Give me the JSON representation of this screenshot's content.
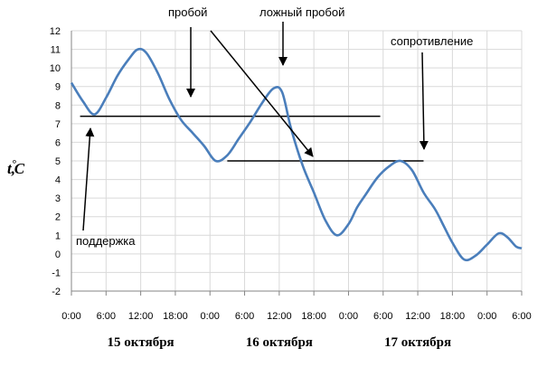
{
  "chart_data": {
    "type": "line",
    "ylabel": "t,°C",
    "ylim": [
      -2,
      12
    ],
    "ytick_step": 1,
    "xlim_hours": [
      0,
      78
    ],
    "x_tick_labels": [
      "0:00",
      "6:00",
      "12:00",
      "18:00",
      "0:00",
      "6:00",
      "12:00",
      "18:00",
      "0:00",
      "6:00",
      "12:00",
      "18:00",
      "0:00",
      "6:00"
    ],
    "day_labels": [
      {
        "text": "15 октября",
        "center_hour": 12
      },
      {
        "text": "16 октября",
        "center_hour": 36
      },
      {
        "text": "17 октября",
        "center_hour": 60
      }
    ],
    "grid": true,
    "line_color": "#4a7ebb",
    "series": [
      {
        "x": [
          0,
          2,
          4,
          6,
          8,
          10,
          11.5,
          13,
          15,
          17,
          19,
          21,
          23,
          25,
          27,
          29,
          31,
          33,
          35,
          36.5,
          38,
          40,
          42,
          44,
          46,
          48,
          49.5,
          51,
          53,
          55,
          57,
          59,
          61,
          63,
          64.5,
          66,
          68,
          70,
          72,
          74,
          75.5,
          77,
          78
        ],
        "y": [
          9.2,
          8.2,
          7.5,
          8.4,
          9.6,
          10.5,
          11,
          10.8,
          9.7,
          8.3,
          7.2,
          6.5,
          5.8,
          5.0,
          5.3,
          6.2,
          7.1,
          8.1,
          8.9,
          8.7,
          6.8,
          4.8,
          3.3,
          1.8,
          1.0,
          1.6,
          2.5,
          3.2,
          4.1,
          4.7,
          5.0,
          4.5,
          3.3,
          2.4,
          1.5,
          0.6,
          -0.3,
          -0.1,
          0.5,
          1.1,
          0.9,
          0.4,
          0.3
        ]
      }
    ],
    "levels": [
      {
        "y": 7.4,
        "x_from": 1.5,
        "x_to": 53.5
      },
      {
        "y": 5.0,
        "x_from": 27,
        "x_to": 61
      }
    ],
    "annotations": [
      {
        "text": "пробой"
      },
      {
        "text": "ложный пробой"
      },
      {
        "text": "сопротивление"
      },
      {
        "text": "поддержка"
      }
    ]
  }
}
